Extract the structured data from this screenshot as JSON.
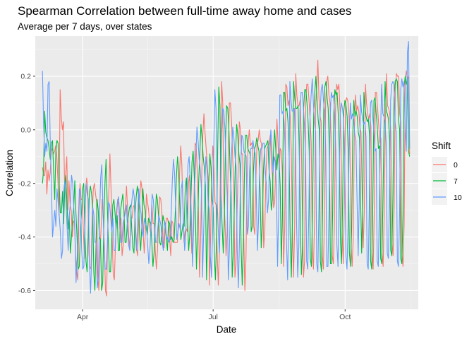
{
  "chart_data": {
    "type": "line",
    "title": "Spearman Correlation between full-time away home and cases",
    "subtitle": "Average per 7 days, over states",
    "xlabel": "Date",
    "ylabel": "Correlation",
    "xlim": [
      "2020-02-28",
      "2020-11-21"
    ],
    "ylim": [
      -0.67,
      0.35
    ],
    "x_ticks": [
      {
        "date": "2020-04-01",
        "label": "Apr"
      },
      {
        "date": "2020-07-01",
        "label": "Jul"
      },
      {
        "date": "2020-10-01",
        "label": "Oct"
      }
    ],
    "y_ticks": [
      {
        "value": 0.2,
        "label": "0.2"
      },
      {
        "value": 0.0,
        "label": "0.0"
      },
      {
        "value": -0.2,
        "label": "-0.2"
      },
      {
        "value": -0.4,
        "label": "-0.4"
      },
      {
        "value": -0.6,
        "label": "-0.6"
      }
    ],
    "grid": true,
    "legend": {
      "title": "Shift",
      "position": "right"
    },
    "date_start": "2020-03-04",
    "date_end": "2020-11-15",
    "series": [
      {
        "name": "0",
        "color": "#F8766D",
        "values": [
          -0.14,
          -0.17,
          -0.17,
          -0.12,
          -0.24,
          -0.15,
          -0.19,
          -0.16,
          -0.08,
          -0.07,
          -0.09,
          -0.08,
          -0.06,
          -0.1,
          -0.19,
          -0.32,
          0.15,
          0.05,
          0.0,
          0.03,
          -0.2,
          -0.17,
          -0.1,
          -0.3,
          -0.19,
          -0.28,
          -0.3,
          -0.4,
          -0.34,
          -0.35,
          -0.47,
          -0.53,
          -0.56,
          -0.31,
          -0.2,
          -0.26,
          -0.26,
          -0.38,
          -0.48,
          -0.22,
          -0.18,
          -0.22,
          -0.46,
          -0.52,
          -0.51,
          -0.32,
          -0.22,
          -0.2,
          -0.24,
          -0.27,
          -0.54,
          -0.6,
          -0.46,
          -0.37,
          -0.26,
          -0.33,
          -0.44,
          -0.6,
          -0.62,
          -0.39,
          -0.24,
          -0.09,
          -0.22,
          -0.39,
          -0.54,
          -0.56,
          -0.43,
          -0.33,
          -0.26,
          -0.29,
          -0.37,
          -0.33,
          -0.47,
          -0.43,
          -0.33,
          -0.29,
          -0.21,
          -0.3,
          -0.4,
          -0.44,
          -0.33,
          -0.33,
          -0.29,
          -0.28,
          -0.34,
          -0.44,
          -0.47,
          -0.34,
          -0.25,
          -0.19,
          -0.22,
          -0.38,
          -0.46,
          -0.39,
          -0.24,
          -0.27,
          -0.3,
          -0.36,
          -0.39,
          -0.28,
          -0.35,
          -0.35,
          -0.45,
          -0.52,
          -0.45,
          -0.34,
          -0.25,
          -0.26,
          -0.31,
          -0.43,
          -0.44,
          -0.37,
          -0.33,
          -0.33,
          -0.35,
          -0.41,
          -0.47,
          -0.34,
          -0.35,
          -0.42,
          -0.42,
          -0.42,
          -0.42,
          -0.33,
          -0.16,
          -0.06,
          -0.13,
          -0.29,
          -0.42,
          -0.38,
          -0.37,
          -0.38,
          -0.2,
          -0.17,
          -0.34,
          -0.46,
          -0.42,
          -0.26,
          -0.05,
          -0.06,
          -0.16,
          -0.3,
          -0.55,
          -0.41,
          -0.17,
          -0.02,
          0.06,
          -0.01,
          -0.07,
          -0.13,
          -0.19,
          -0.58,
          -0.41,
          -0.18,
          -0.06,
          -0.14,
          -0.27,
          -0.28,
          -0.46,
          -0.58,
          -0.45,
          -0.12,
          0.18,
          0.1,
          -0.26,
          -0.34,
          -0.47,
          -0.38,
          -0.09,
          0.1,
          0.1,
          0.03,
          -0.11,
          -0.2,
          -0.55,
          -0.5,
          -0.3,
          -0.14,
          0.03,
          -0.0,
          -0.09,
          -0.09,
          -0.4,
          -0.6,
          -0.48,
          -0.19,
          -0.05,
          -0.0,
          -0.06,
          -0.05,
          -0.06,
          -0.36,
          -0.39,
          -0.18,
          -0.05,
          -0.04,
          -0.0,
          -0.04,
          -0.05,
          -0.19,
          -0.44,
          -0.38,
          -0.17,
          -0.07,
          -0.06,
          -0.05,
          -0.02,
          -0.13,
          -0.17,
          -0.29,
          -0.27,
          -0.11,
          0.04,
          -0.05,
          -0.15,
          -0.07,
          -0.08,
          -0.17,
          -0.51,
          -0.37,
          0.17,
          0.16,
          0.09,
          0.11,
          0.05,
          -0.08,
          -0.38,
          -0.55,
          -0.37,
          0.21,
          0.13,
          0.09,
          0.09,
          0.11,
          -0.03,
          -0.31,
          -0.55,
          -0.49,
          0.1,
          0.17,
          0.17,
          0.11,
          0.04,
          -0.05,
          -0.45,
          -0.52,
          -0.34,
          0.09,
          0.16,
          0.26,
          0.12,
          0.05,
          0.03,
          -0.47,
          -0.52,
          -0.32,
          0.1,
          0.18,
          0.2,
          0.13,
          0.1,
          -0.03,
          -0.47,
          -0.5,
          -0.35,
          0.08,
          0.17,
          0.15,
          0.17,
          0.08,
          -0.04,
          -0.39,
          -0.5,
          -0.28,
          0.1,
          0.12,
          0.11,
          0.07,
          -0.06,
          -0.43,
          -0.51,
          -0.4,
          0.0,
          0.13,
          0.07,
          0.09,
          0.07,
          0.01,
          -0.01,
          -0.22,
          -0.44,
          -0.3,
          0.17,
          0.1,
          0.06,
          0.04,
          0.06,
          0.01,
          -0.46,
          -0.52,
          -0.3,
          0.14,
          0.14,
          0.08,
          0.02,
          -0.05,
          -0.03,
          -0.46,
          -0.51,
          -0.31,
          0.02,
          0.21,
          0.09,
          0.08,
          0.06,
          -0.01,
          -0.42,
          -0.47,
          -0.28,
          0.15,
          0.21,
          0.2,
          0.2,
          0.06,
          0.03,
          -0.46,
          -0.51,
          -0.35,
          0.19,
          0.22,
          0.19,
          0.2,
          -0.09
        ],
        "note": "approximate"
      },
      {
        "name": "7",
        "color": "#00BA38",
        "values": [
          -0.2,
          -0.15,
          0.07,
          -0.01,
          -0.03,
          -0.04,
          -0.07,
          -0.11,
          -0.05,
          -0.04,
          -0.15,
          -0.26,
          -0.08,
          -0.04,
          -0.05,
          -0.2,
          -0.31,
          -0.31,
          -0.23,
          -0.35,
          -0.22,
          -0.17,
          -0.28,
          -0.37,
          -0.32,
          -0.46,
          -0.4,
          -0.33,
          -0.29,
          -0.19,
          -0.31,
          -0.4,
          -0.52,
          -0.51,
          -0.38,
          -0.31,
          -0.22,
          -0.2,
          -0.39,
          -0.49,
          -0.53,
          -0.39,
          -0.24,
          -0.21,
          -0.24,
          -0.29,
          -0.53,
          -0.6,
          -0.43,
          -0.26,
          -0.3,
          -0.4,
          -0.41,
          -0.6,
          -0.57,
          -0.35,
          -0.2,
          -0.11,
          -0.27,
          -0.41,
          -0.53,
          -0.53,
          -0.43,
          -0.28,
          -0.26,
          -0.31,
          -0.37,
          -0.32,
          -0.45,
          -0.45,
          -0.3,
          -0.27,
          -0.24,
          -0.3,
          -0.42,
          -0.42,
          -0.35,
          -0.32,
          -0.29,
          -0.28,
          -0.37,
          -0.44,
          -0.46,
          -0.31,
          -0.25,
          -0.21,
          -0.24,
          -0.39,
          -0.45,
          -0.36,
          -0.22,
          -0.28,
          -0.3,
          -0.37,
          -0.39,
          -0.33,
          -0.34,
          -0.35,
          -0.42,
          -0.51,
          -0.46,
          -0.35,
          -0.24,
          -0.26,
          -0.32,
          -0.42,
          -0.43,
          -0.38,
          -0.32,
          -0.34,
          -0.35,
          -0.41,
          -0.45,
          -0.34,
          -0.35,
          -0.41,
          -0.4,
          -0.42,
          -0.41,
          -0.31,
          -0.18,
          -0.1,
          -0.15,
          -0.28,
          -0.41,
          -0.38,
          -0.35,
          -0.36,
          -0.21,
          -0.18,
          -0.34,
          -0.45,
          -0.39,
          -0.26,
          -0.12,
          -0.08,
          -0.17,
          -0.31,
          -0.52,
          -0.38,
          -0.19,
          -0.09,
          0.02,
          -0.03,
          -0.1,
          -0.14,
          -0.21,
          -0.56,
          -0.39,
          -0.2,
          -0.09,
          -0.14,
          -0.26,
          -0.29,
          -0.47,
          -0.56,
          -0.4,
          -0.07,
          0.16,
          0.09,
          -0.25,
          -0.36,
          -0.46,
          -0.33,
          -0.04,
          0.09,
          0.08,
          0.01,
          -0.13,
          -0.23,
          -0.55,
          -0.46,
          -0.27,
          -0.09,
          0.02,
          -0.02,
          -0.09,
          -0.13,
          -0.44,
          -0.58,
          -0.42,
          -0.16,
          -0.02,
          -0.02,
          -0.07,
          -0.08,
          -0.09,
          -0.38,
          -0.36,
          -0.16,
          -0.07,
          -0.06,
          -0.03,
          -0.06,
          -0.08,
          -0.23,
          -0.44,
          -0.35,
          -0.15,
          -0.07,
          -0.06,
          -0.05,
          -0.04,
          -0.15,
          -0.19,
          -0.3,
          -0.26,
          -0.08,
          0.0,
          -0.07,
          -0.15,
          -0.09,
          -0.11,
          -0.21,
          -0.5,
          -0.32,
          0.14,
          0.14,
          0.07,
          0.08,
          0.03,
          -0.09,
          -0.41,
          -0.55,
          -0.33,
          0.18,
          0.12,
          0.08,
          0.08,
          0.09,
          -0.06,
          -0.34,
          -0.54,
          -0.44,
          0.08,
          0.15,
          0.15,
          0.1,
          0.03,
          -0.08,
          -0.48,
          -0.51,
          -0.3,
          0.06,
          0.14,
          0.2,
          0.11,
          0.04,
          0.0,
          -0.49,
          -0.53,
          -0.29,
          0.07,
          0.16,
          0.18,
          0.12,
          0.08,
          -0.06,
          -0.5,
          -0.5,
          -0.31,
          0.06,
          0.15,
          0.13,
          0.14,
          0.06,
          -0.07,
          -0.42,
          -0.5,
          -0.25,
          0.07,
          0.11,
          0.09,
          0.05,
          -0.09,
          -0.46,
          -0.51,
          -0.37,
          -0.02,
          0.11,
          0.05,
          0.07,
          0.05,
          -0.01,
          -0.03,
          -0.25,
          -0.46,
          -0.27,
          0.14,
          0.08,
          0.05,
          0.03,
          0.04,
          -0.02,
          -0.49,
          -0.52,
          -0.27,
          0.11,
          0.12,
          0.06,
          0.01,
          -0.07,
          -0.06,
          -0.48,
          -0.5,
          -0.28,
          0.0,
          0.18,
          0.07,
          0.06,
          0.04,
          -0.04,
          -0.45,
          -0.47,
          -0.25,
          0.12,
          0.18,
          0.19,
          0.18,
          0.04,
          0.0,
          -0.48,
          -0.5,
          -0.32,
          0.16,
          0.2,
          0.17,
          0.19,
          -0.08,
          -0.1
        ],
        "note": "approximate"
      },
      {
        "name": "10",
        "color": "#619CFF",
        "values": [
          0.22,
          0.03,
          -0.1,
          -0.05,
          -0.08,
          0.17,
          0.18,
          -0.05,
          -0.2,
          -0.4,
          -0.35,
          -0.3,
          -0.36,
          -0.22,
          -0.27,
          -0.32,
          -0.38,
          -0.48,
          -0.45,
          -0.23,
          -0.19,
          -0.27,
          -0.36,
          -0.45,
          -0.32,
          -0.27,
          -0.17,
          -0.2,
          -0.29,
          -0.38,
          -0.57,
          -0.48,
          -0.35,
          -0.22,
          -0.23,
          -0.44,
          -0.52,
          -0.51,
          -0.31,
          -0.2,
          -0.24,
          -0.26,
          -0.5,
          -0.61,
          -0.47,
          -0.29,
          -0.32,
          -0.42,
          -0.42,
          -0.59,
          -0.55,
          -0.32,
          -0.18,
          -0.13,
          -0.28,
          -0.43,
          -0.52,
          -0.52,
          -0.43,
          -0.27,
          -0.28,
          -0.33,
          -0.38,
          -0.33,
          -0.45,
          -0.45,
          -0.31,
          -0.27,
          -0.25,
          -0.32,
          -0.42,
          -0.42,
          -0.35,
          -0.33,
          -0.31,
          -0.28,
          -0.37,
          -0.43,
          -0.45,
          -0.3,
          -0.26,
          -0.22,
          -0.25,
          -0.39,
          -0.45,
          -0.35,
          -0.22,
          -0.28,
          -0.31,
          -0.38,
          -0.4,
          -0.33,
          -0.35,
          -0.36,
          -0.43,
          -0.5,
          -0.45,
          -0.35,
          -0.24,
          -0.26,
          -0.33,
          -0.42,
          -0.42,
          -0.37,
          -0.32,
          -0.34,
          -0.36,
          -0.42,
          -0.45,
          -0.34,
          -0.36,
          -0.41,
          -0.4,
          -0.42,
          -0.41,
          -0.31,
          -0.19,
          -0.11,
          -0.16,
          -0.29,
          -0.41,
          -0.38,
          -0.35,
          -0.37,
          -0.22,
          -0.19,
          -0.35,
          -0.45,
          -0.39,
          -0.26,
          -0.13,
          -0.1,
          -0.19,
          -0.32,
          -0.51,
          -0.37,
          -0.2,
          -0.1,
          0.01,
          -0.04,
          -0.11,
          -0.15,
          -0.22,
          -0.55,
          -0.38,
          -0.21,
          -0.1,
          -0.15,
          -0.27,
          -0.3,
          -0.47,
          -0.55,
          -0.38,
          -0.06,
          0.15,
          0.08,
          -0.26,
          -0.37,
          -0.46,
          -0.32,
          -0.03,
          0.08,
          0.07,
          0.0,
          -0.14,
          -0.24,
          -0.56,
          -0.45,
          -0.26,
          -0.08,
          0.01,
          -0.03,
          -0.1,
          -0.14,
          -0.45,
          -0.59,
          -0.41,
          -0.16,
          -0.02,
          -0.03,
          -0.08,
          -0.09,
          -0.1,
          -0.39,
          -0.36,
          -0.16,
          -0.07,
          -0.07,
          -0.04,
          -0.07,
          -0.09,
          -0.24,
          -0.45,
          -0.34,
          -0.14,
          -0.07,
          -0.07,
          -0.05,
          -0.05,
          -0.16,
          -0.2,
          -0.31,
          -0.26,
          -0.07,
          -0.0,
          -0.08,
          -0.16,
          -0.1,
          -0.12,
          -0.22,
          -0.51,
          -0.31,
          0.13,
          0.13,
          0.06,
          0.07,
          0.02,
          -0.1,
          -0.42,
          -0.56,
          -0.32,
          0.18,
          0.11,
          0.07,
          0.07,
          0.08,
          -0.07,
          -0.35,
          -0.55,
          -0.43,
          0.07,
          0.14,
          0.14,
          0.09,
          0.02,
          -0.09,
          -0.49,
          -0.52,
          -0.29,
          0.05,
          0.13,
          0.19,
          0.1,
          0.03,
          -0.01,
          -0.5,
          -0.53,
          -0.28,
          0.06,
          0.15,
          0.17,
          0.11,
          0.07,
          -0.07,
          -0.51,
          -0.51,
          -0.3,
          0.05,
          0.14,
          0.12,
          0.13,
          0.05,
          -0.08,
          -0.43,
          -0.51,
          -0.24,
          0.06,
          0.1,
          0.08,
          0.04,
          -0.1,
          -0.47,
          -0.52,
          -0.36,
          -0.03,
          0.1,
          0.04,
          0.06,
          0.04,
          -0.02,
          -0.04,
          -0.26,
          -0.47,
          -0.26,
          0.13,
          0.07,
          0.04,
          0.02,
          0.03,
          -0.03,
          -0.5,
          -0.52,
          -0.26,
          0.1,
          0.11,
          0.05,
          0.0,
          -0.08,
          -0.07,
          -0.49,
          -0.51,
          -0.27,
          -0.01,
          0.17,
          0.06,
          0.05,
          0.03,
          -0.05,
          -0.46,
          -0.48,
          -0.24,
          0.11,
          0.17,
          0.18,
          0.17,
          0.03,
          -0.01,
          -0.49,
          -0.51,
          -0.31,
          0.15,
          0.19,
          0.16,
          0.18,
          0.01,
          -0.08,
          0.29,
          0.33,
          -0.07
        ],
        "note": "approximate"
      }
    ]
  }
}
